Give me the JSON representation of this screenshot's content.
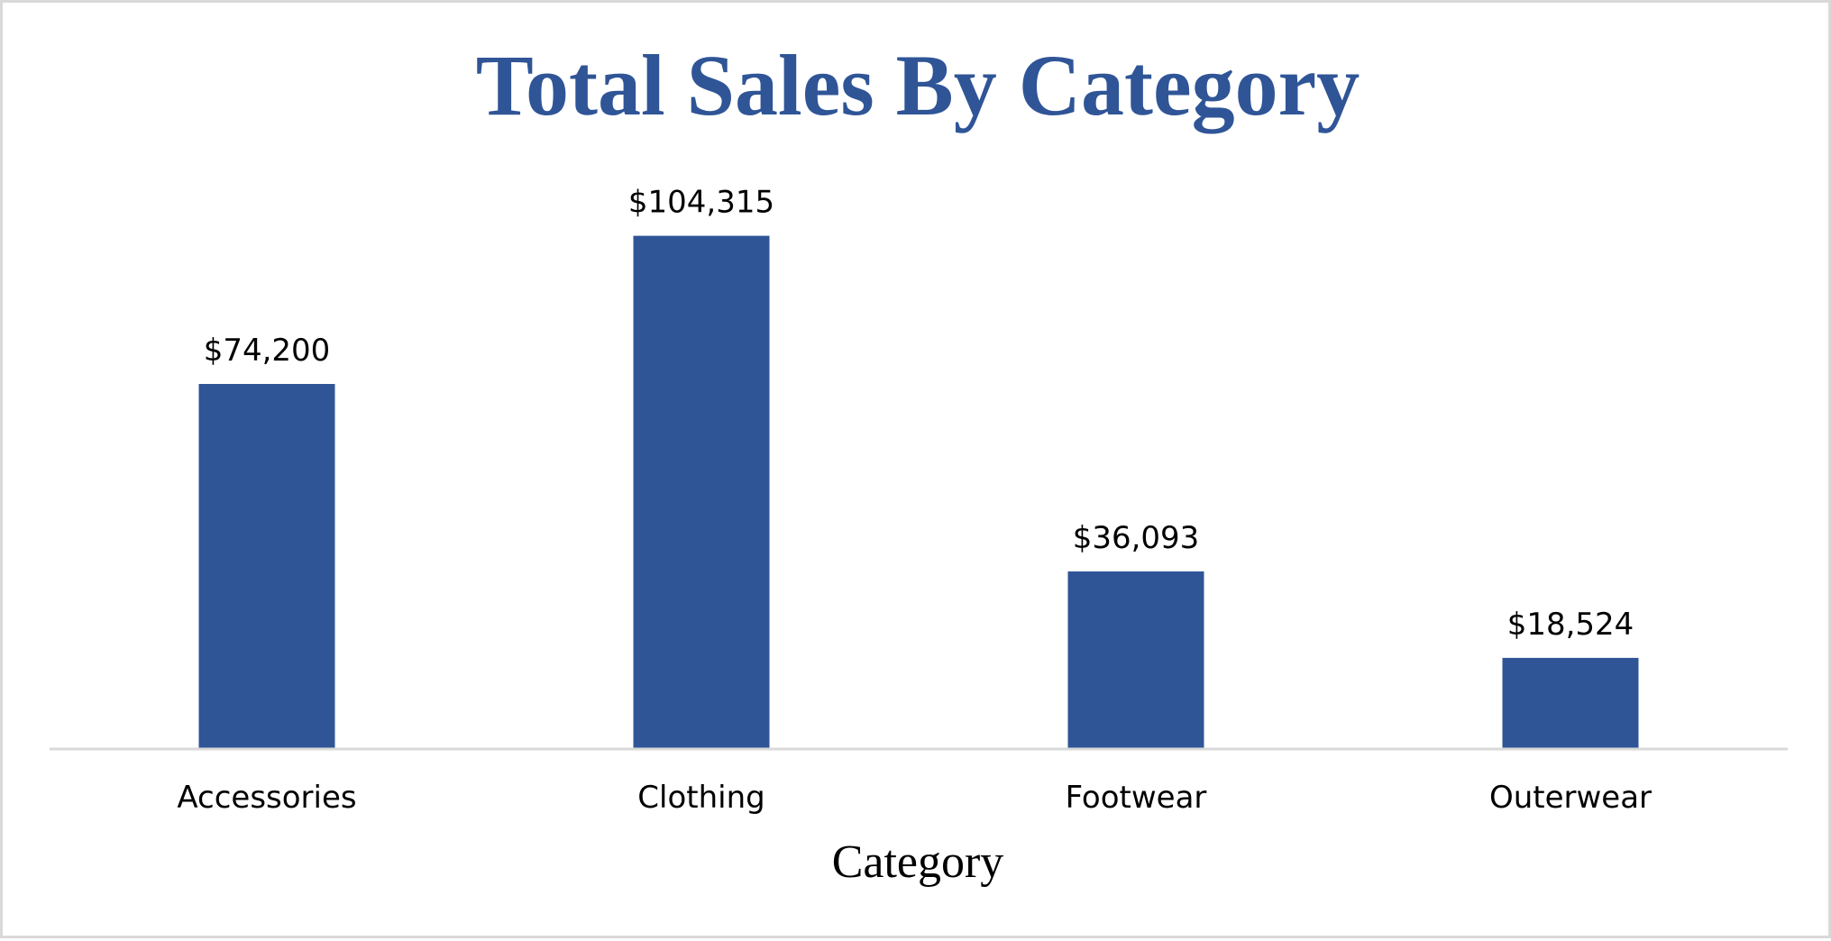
{
  "chart_data": {
    "type": "bar",
    "title": "Total Sales By Category",
    "xlabel": "Category",
    "ylabel": "",
    "categories": [
      "Accessories",
      "Clothing",
      "Footwear",
      "Outerwear"
    ],
    "values": [
      74200,
      104315,
      36093,
      18524
    ],
    "data_labels": [
      "$74,200",
      "$104,315",
      "$36,093",
      "$18,524"
    ],
    "ylim": [
      0,
      120000
    ],
    "grid": false,
    "legend": "none",
    "colors": {
      "bar": "#2F5597",
      "title": "#2F5597",
      "axis_line": "#d9d9d9"
    }
  }
}
